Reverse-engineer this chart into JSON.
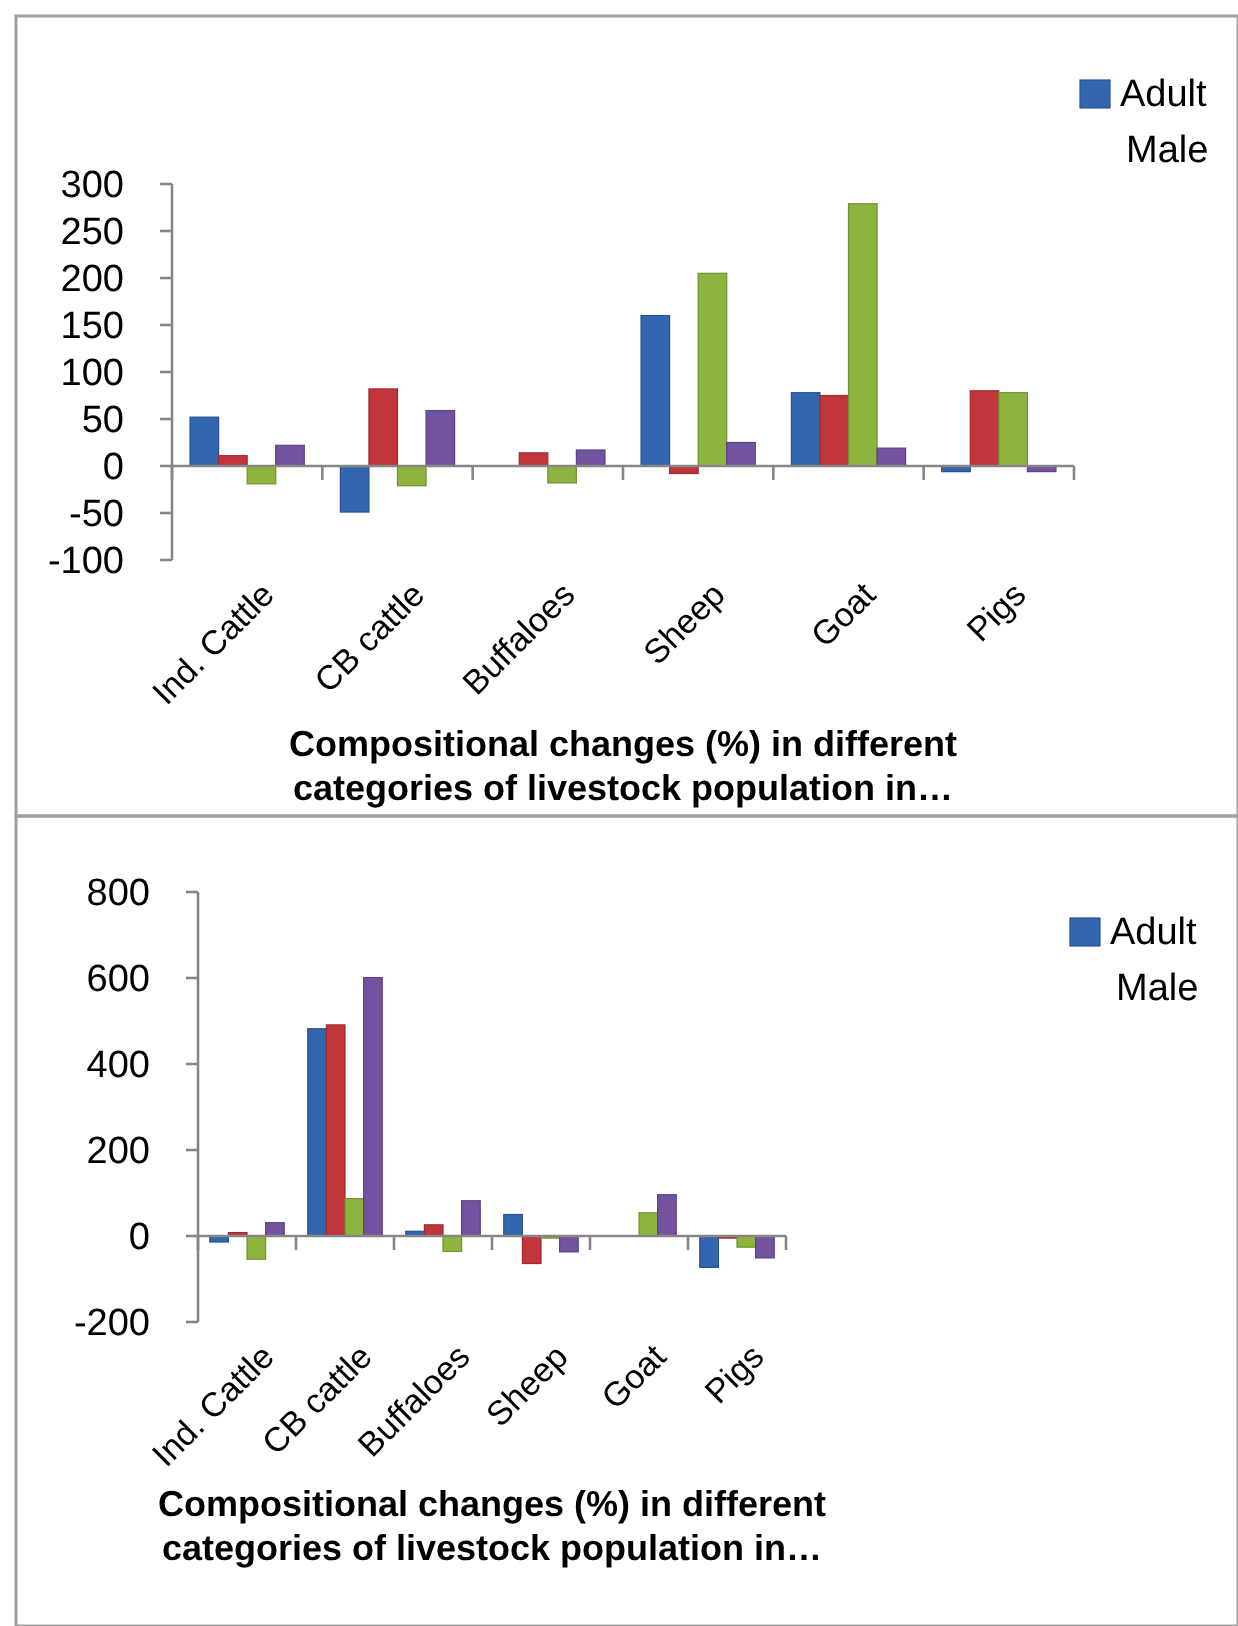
{
  "chart_data": [
    {
      "type": "bar",
      "categories": [
        "Ind. Cattle",
        "CB cattle",
        "Buffaloes",
        "Sheep",
        "Goat",
        "Pigs"
      ],
      "series": [
        {
          "name": "Adult Male",
          "color": "#3267b0",
          "values": [
            52,
            -49,
            null,
            160,
            78,
            -6
          ]
        },
        {
          "color": "#c0363a",
          "values": [
            11,
            82,
            14,
            -8,
            75,
            80
          ]
        },
        {
          "color": "#8cb43e",
          "values": [
            -19,
            -21,
            -18,
            205,
            279,
            78
          ]
        },
        {
          "color": "#7352a0",
          "values": [
            22,
            59,
            17,
            25,
            19,
            -6
          ]
        }
      ],
      "ylim": [
        -100,
        300
      ],
      "yticks": [
        -100,
        -50,
        0,
        50,
        100,
        150,
        200,
        250,
        300
      ],
      "xlabel": "Compositional changes (%) in different categories of livestock population in…",
      "legend": "top right"
    },
    {
      "type": "bar",
      "categories": [
        "Ind. Cattle",
        "CB cattle",
        "Buffaloes",
        "Sheep",
        "Goat",
        "Pigs"
      ],
      "series": [
        {
          "name": "Adult Male",
          "color": "#3267b0",
          "values": [
            -14,
            482,
            11,
            50,
            null,
            -73
          ]
        },
        {
          "color": "#c0363a",
          "values": [
            8,
            491,
            26,
            -64,
            null,
            -5
          ]
        },
        {
          "color": "#8cb43e",
          "values": [
            -54,
            87,
            -36,
            -5,
            54,
            -26
          ]
        },
        {
          "color": "#7352a0",
          "values": [
            31,
            601,
            82,
            -37,
            96,
            -51
          ]
        }
      ],
      "ylim": [
        -200,
        800
      ],
      "yticks": [
        -200,
        0,
        200,
        400,
        600,
        800
      ],
      "xlabel": "Compositional changes (%) in different categories of livestock population in…",
      "legend": "top right"
    }
  ]
}
